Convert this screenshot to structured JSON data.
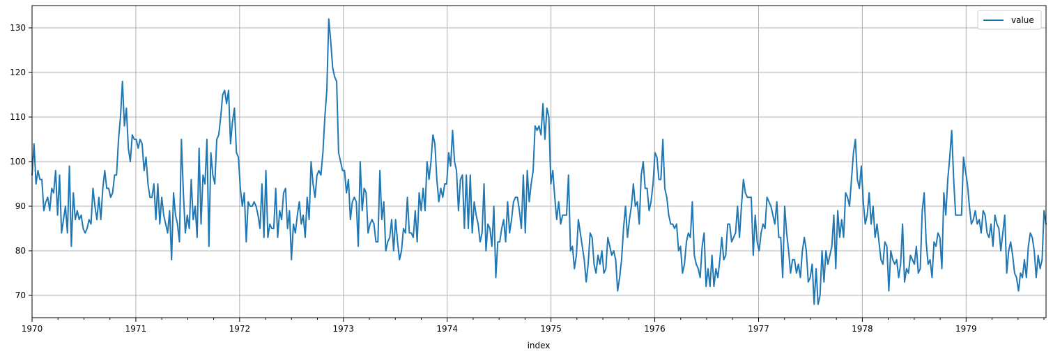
{
  "chart_data": {
    "type": "line",
    "xlabel": "index",
    "ylabel": "",
    "title": "",
    "x_start": "1970-01",
    "x_end": "1979-10",
    "frequency": "weekly",
    "xlim": [
      1970.0,
      1979.77
    ],
    "ylim": [
      65,
      135
    ],
    "x_ticks": [
      "1970",
      "1971",
      "1972",
      "1973",
      "1974",
      "1975",
      "1976",
      "1977",
      "1978",
      "1979"
    ],
    "y_ticks": [
      70,
      80,
      90,
      100,
      110,
      120,
      130
    ],
    "grid": true,
    "legend_position": "top-right",
    "color": "#1f77b4",
    "series": [
      {
        "name": "value",
        "values": [
          97,
          104,
          95,
          98,
          96,
          96,
          89,
          91,
          92,
          89,
          94,
          93,
          98,
          88,
          97,
          84,
          87,
          90,
          84,
          99,
          81,
          93,
          87,
          89,
          87,
          88,
          85,
          84,
          85,
          87,
          86,
          94,
          90,
          87,
          92,
          87,
          94,
          98,
          94,
          94,
          92,
          93,
          97,
          97,
          105,
          110,
          118,
          108,
          112,
          103,
          100,
          106,
          105,
          105,
          103,
          105,
          104,
          98,
          101,
          95,
          92,
          92,
          95,
          87,
          95,
          86,
          92,
          88,
          86,
          84,
          89,
          78,
          93,
          88,
          86,
          82,
          105,
          93,
          84,
          88,
          85,
          96,
          87,
          90,
          83,
          103,
          86,
          97,
          95,
          105,
          81,
          102,
          97,
          95,
          105,
          106,
          110,
          115,
          116,
          113,
          116,
          104,
          109,
          112,
          102,
          101,
          94,
          90,
          93,
          82,
          91,
          90,
          90,
          91,
          90,
          88,
          85,
          95,
          83,
          98,
          83,
          86,
          85,
          85,
          94,
          83,
          89,
          87,
          93,
          94,
          85,
          89,
          78,
          86,
          84,
          88,
          91,
          86,
          88,
          83,
          92,
          87,
          100,
          95,
          92,
          97,
          98,
          97,
          102,
          110,
          116,
          132,
          127,
          121,
          119,
          118,
          102,
          100,
          98,
          98,
          93,
          96,
          87,
          91,
          92,
          91,
          81,
          100,
          89,
          94,
          93,
          84,
          86,
          87,
          86,
          82,
          82,
          98,
          87,
          91,
          80,
          82,
          83,
          87,
          80,
          87,
          82,
          78,
          80,
          85,
          84,
          92,
          84,
          84,
          83,
          89,
          82,
          93,
          89,
          94,
          89,
          100,
          96,
          100,
          106,
          104,
          96,
          91,
          94,
          92,
          95,
          95,
          102,
          99,
          107,
          100,
          98,
          89,
          96,
          97,
          85,
          97,
          85,
          97,
          84,
          91,
          88,
          86,
          82,
          84,
          95,
          80,
          86,
          85,
          81,
          90,
          74,
          82,
          82,
          85,
          87,
          82,
          91,
          84,
          87,
          91,
          92,
          92,
          89,
          85,
          97,
          84,
          98,
          91,
          95,
          98,
          108,
          107,
          108,
          106,
          113,
          105,
          112,
          110,
          95,
          98,
          92,
          87,
          91,
          86,
          88,
          88,
          88,
          97,
          80,
          81,
          76,
          79,
          87,
          84,
          81,
          78,
          73,
          77,
          84,
          83,
          77,
          75,
          79,
          77,
          80,
          75,
          76,
          83,
          81,
          79,
          80,
          78,
          71,
          74,
          78,
          85,
          90,
          83,
          87,
          90,
          95,
          90,
          91,
          86,
          97,
          100,
          94,
          94,
          89,
          91,
          95,
          102,
          101,
          96,
          96,
          105,
          94,
          92,
          88,
          86,
          86,
          85,
          86,
          80,
          81,
          75,
          77,
          82,
          84,
          83,
          91,
          79,
          77,
          76,
          74,
          81,
          84,
          72,
          76,
          72,
          79,
          72,
          76,
          74,
          78,
          83,
          78,
          79,
          86,
          86,
          82,
          83,
          84,
          90,
          83,
          90,
          96,
          93,
          92,
          92,
          92,
          79,
          88,
          82,
          80,
          84,
          86,
          85,
          92,
          91,
          90,
          88,
          86,
          91,
          83,
          83,
          74,
          90,
          84,
          80,
          75,
          78,
          78,
          75,
          77,
          74,
          80,
          83,
          80,
          73,
          74,
          77,
          68,
          76,
          68,
          70,
          80,
          73,
          80,
          77,
          79,
          81,
          88,
          76,
          89,
          83,
          87,
          83,
          93,
          92,
          90,
          96,
          102,
          105,
          96,
          94,
          99,
          91,
          86,
          88,
          93,
          86,
          90,
          83,
          86,
          82,
          78,
          77,
          82,
          81,
          71,
          80,
          78,
          77,
          78,
          74,
          77,
          86,
          73,
          76,
          75,
          79,
          78,
          77,
          81,
          75,
          76,
          89,
          93,
          82,
          77,
          78,
          74,
          82,
          81,
          84,
          83,
          76,
          93,
          88,
          96,
          101,
          107,
          96,
          88,
          88,
          88,
          88,
          101,
          98,
          95,
          90,
          86,
          87,
          89,
          86,
          87,
          84,
          89,
          88,
          84,
          83,
          86,
          81,
          88,
          86,
          85,
          80,
          84,
          88,
          75,
          80,
          82,
          79,
          75,
          74,
          71,
          75,
          74,
          78,
          74,
          81,
          84,
          83,
          80,
          74,
          79,
          76,
          78,
          89,
          86
        ]
      }
    ]
  }
}
